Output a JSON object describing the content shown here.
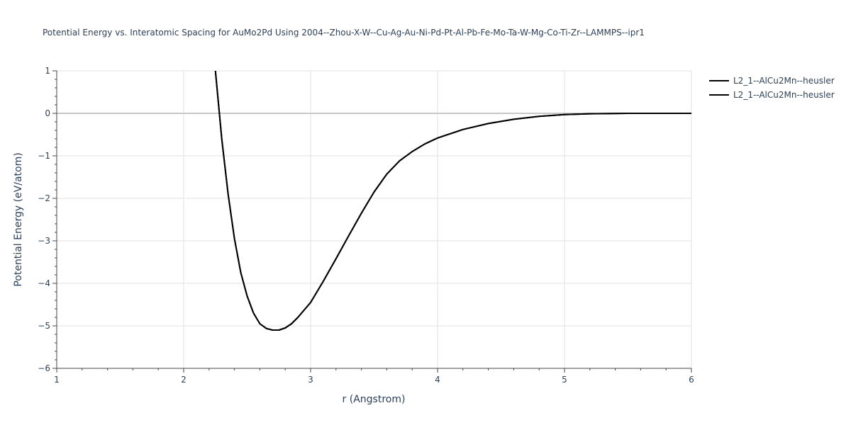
{
  "chart_data": {
    "type": "line",
    "title": "Potential Energy vs. Interatomic Spacing for AuMo2Pd Using 2004--Zhou-X-W--Cu-Ag-Au-Ni-Pd-Pt-Al-Pb-Fe-Mo-Ta-W-Mg-Co-Ti-Zr--LAMMPS--ipr1",
    "xlabel": "r (Angstrom)",
    "ylabel": "Potential Energy (eV/atom)",
    "xlim": [
      1,
      6
    ],
    "ylim": [
      -6,
      1
    ],
    "x_ticks": [
      1,
      2,
      3,
      4,
      5,
      6
    ],
    "y_ticks": [
      1,
      0,
      -1,
      -2,
      -3,
      -4,
      -5,
      -6
    ],
    "x_tick_labels": [
      "1",
      "2",
      "3",
      "4",
      "5",
      "6"
    ],
    "y_tick_labels": [
      "1",
      "0",
      "−1",
      "−2",
      "−3",
      "−4",
      "−5",
      "−6"
    ],
    "grid": true,
    "legend_position": "top-right",
    "line_color": "#000000",
    "series": [
      {
        "name": "L2_1--AlCu2Mn--heusler",
        "x": [
          2.25,
          2.3,
          2.35,
          2.4,
          2.45,
          2.5,
          2.55,
          2.6,
          2.65,
          2.7,
          2.75,
          2.8,
          2.85,
          2.9,
          3.0,
          3.1,
          3.2,
          3.3,
          3.4,
          3.5,
          3.6,
          3.7,
          3.8,
          3.9,
          4.0,
          4.2,
          4.4,
          4.6,
          4.8,
          5.0,
          5.2,
          5.5,
          6.0
        ],
        "y": [
          1.0,
          -0.6,
          -1.9,
          -2.95,
          -3.75,
          -4.3,
          -4.7,
          -4.95,
          -5.06,
          -5.1,
          -5.1,
          -5.05,
          -4.95,
          -4.8,
          -4.45,
          -3.95,
          -3.42,
          -2.88,
          -2.35,
          -1.85,
          -1.43,
          -1.12,
          -0.9,
          -0.72,
          -0.58,
          -0.38,
          -0.24,
          -0.14,
          -0.07,
          -0.03,
          -0.01,
          0.0,
          0.0
        ]
      },
      {
        "name": "L2_1--AlCu2Mn--heusler",
        "x": [
          2.25,
          2.3,
          2.35,
          2.4,
          2.45,
          2.5,
          2.55,
          2.6,
          2.65,
          2.7,
          2.75,
          2.8,
          2.85,
          2.9,
          3.0,
          3.1,
          3.2,
          3.3,
          3.4,
          3.5,
          3.6,
          3.7,
          3.8,
          3.9,
          4.0,
          4.2,
          4.4,
          4.6,
          4.8,
          5.0,
          5.2,
          5.5,
          6.0
        ],
        "y": [
          1.0,
          -0.6,
          -1.9,
          -2.95,
          -3.75,
          -4.3,
          -4.7,
          -4.95,
          -5.06,
          -5.1,
          -5.1,
          -5.05,
          -4.95,
          -4.8,
          -4.45,
          -3.95,
          -3.42,
          -2.88,
          -2.35,
          -1.85,
          -1.43,
          -1.12,
          -0.9,
          -0.72,
          -0.58,
          -0.38,
          -0.24,
          -0.14,
          -0.07,
          -0.03,
          -0.01,
          0.0,
          0.0
        ]
      }
    ]
  }
}
